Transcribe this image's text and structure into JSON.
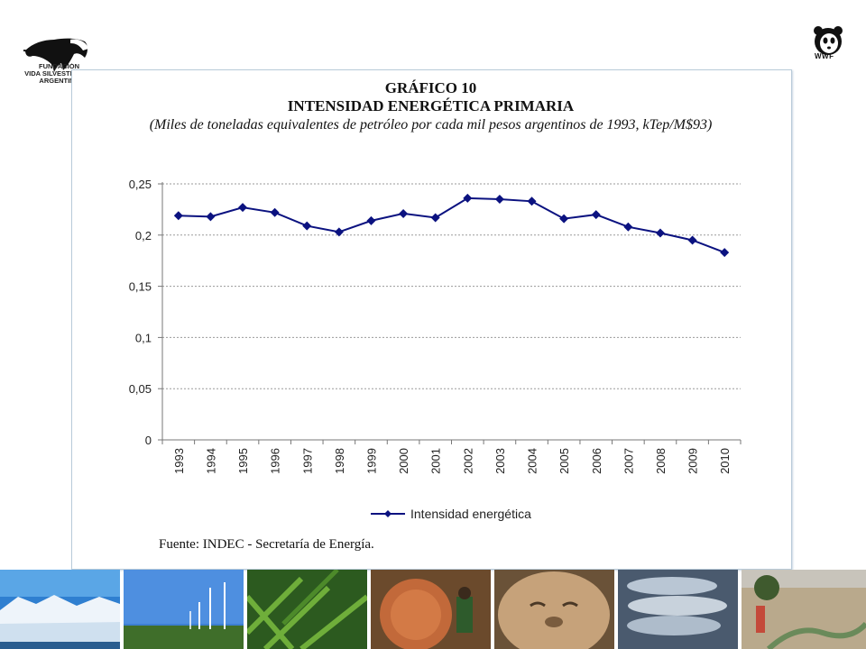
{
  "header": {
    "fva_logo": {
      "icon": "anteater-icon",
      "lines": [
        "FUNDACIÓN",
        "VIDA SILVESTRE",
        "ARGENTINA"
      ]
    },
    "wwf_logo": {
      "icon": "panda-icon",
      "text": "WWF"
    }
  },
  "chart_title": {
    "line1": "GRÁFICO 10",
    "line2": "INTENSIDAD ENERGÉTICA PRIMARIA",
    "line3": "(Miles de toneladas equivalentes de petróleo por cada mil pesos argentinos de 1993, kTep/M$93)"
  },
  "source": "Fuente: INDEC - Secretaría de Energía.",
  "chart_data": {
    "type": "line",
    "x": [
      "1993",
      "1994",
      "1995",
      "1996",
      "1997",
      "1998",
      "1999",
      "2000",
      "2001",
      "2002",
      "2003",
      "2004",
      "2005",
      "2006",
      "2007",
      "2008",
      "2009",
      "2010"
    ],
    "series": [
      {
        "name": "Intensidad energética",
        "values": [
          0.219,
          0.218,
          0.227,
          0.222,
          0.209,
          0.203,
          0.214,
          0.221,
          0.217,
          0.236,
          0.235,
          0.233,
          0.216,
          0.22,
          0.208,
          0.202,
          0.195,
          0.183
        ],
        "color": "#0b1280",
        "marker": "diamond"
      }
    ],
    "ylim": [
      0,
      0.25
    ],
    "yticks": [
      "0",
      "0,05",
      "0,1",
      "0,15",
      "0,2",
      "0,25"
    ],
    "grid": true,
    "legend": "bottom"
  },
  "footer_photos": [
    "glacier",
    "wind-turbines",
    "ferns",
    "logging",
    "seal",
    "fish",
    "arid-landscape"
  ]
}
